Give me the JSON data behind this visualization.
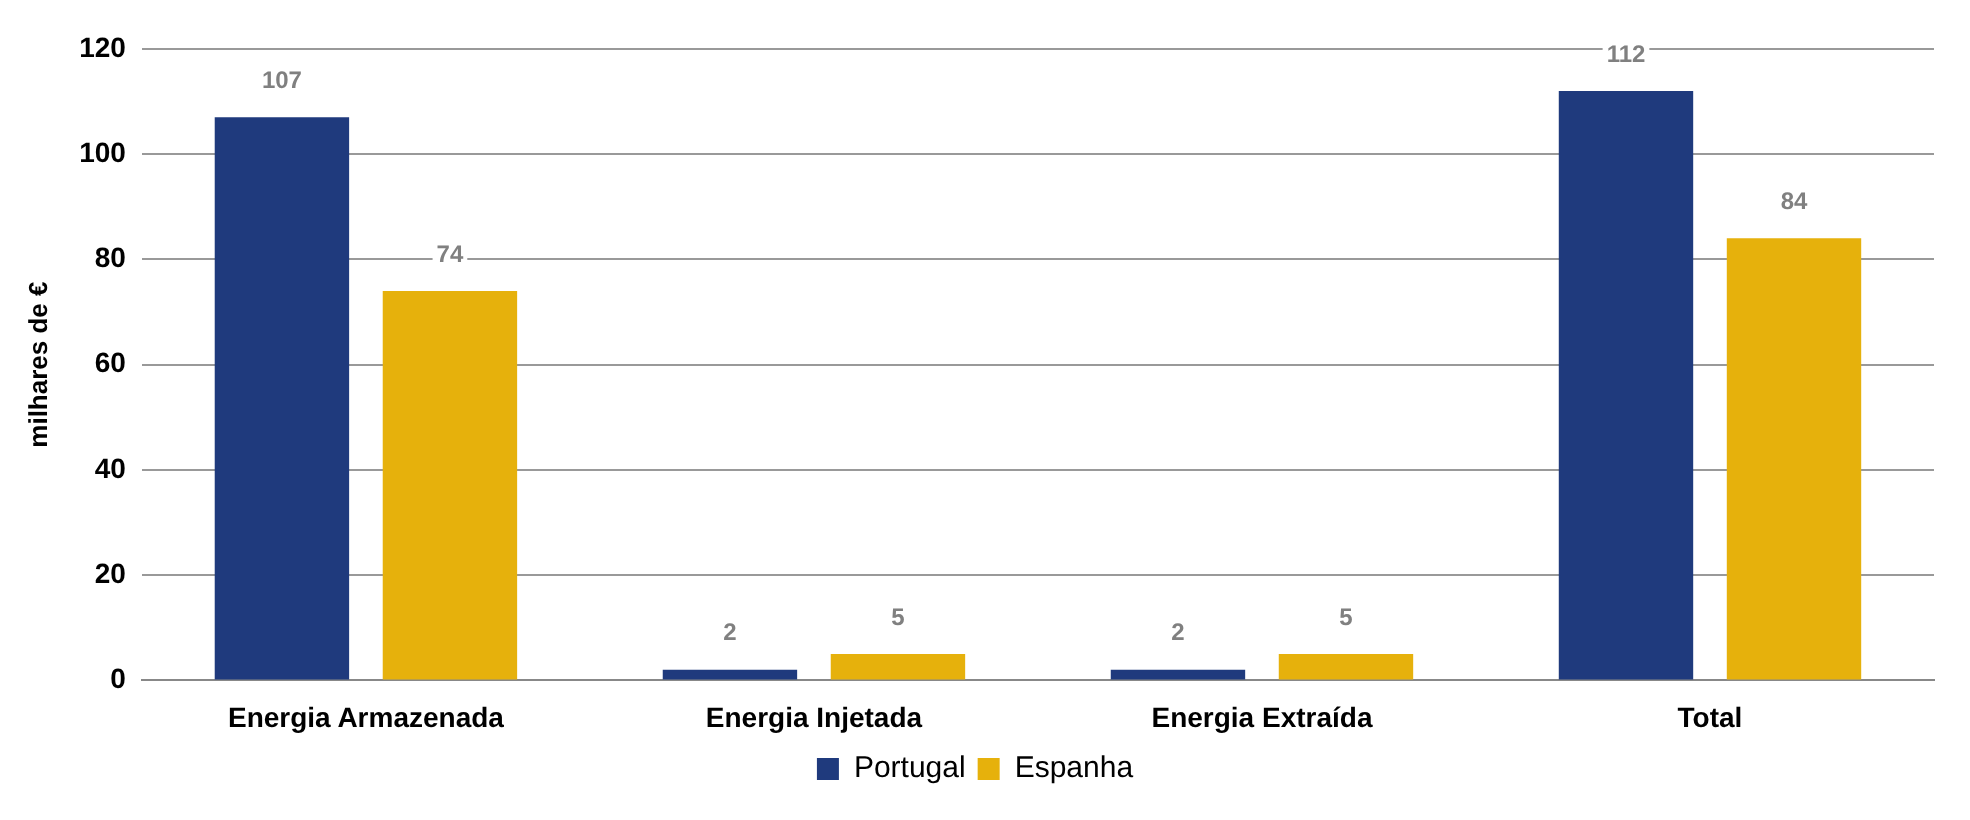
{
  "chart_data": {
    "type": "bar",
    "ylabel": "milhares de €",
    "categories": [
      "Energia Armazenada",
      "Energia Injetada",
      "Energia Extraída",
      "Total"
    ],
    "series": [
      {
        "name": "Portugal",
        "color": "#1f3a7d",
        "values": [
          107,
          2,
          2,
          112
        ]
      },
      {
        "name": "Espanha",
        "color": "#e6b10c",
        "values": [
          74,
          5,
          5,
          84
        ]
      }
    ],
    "ylim": [
      0,
      120
    ],
    "yticks": [
      0,
      20,
      40,
      60,
      80,
      100,
      120
    ],
    "grid": "y",
    "legend": "bottom",
    "data_labels": true
  }
}
